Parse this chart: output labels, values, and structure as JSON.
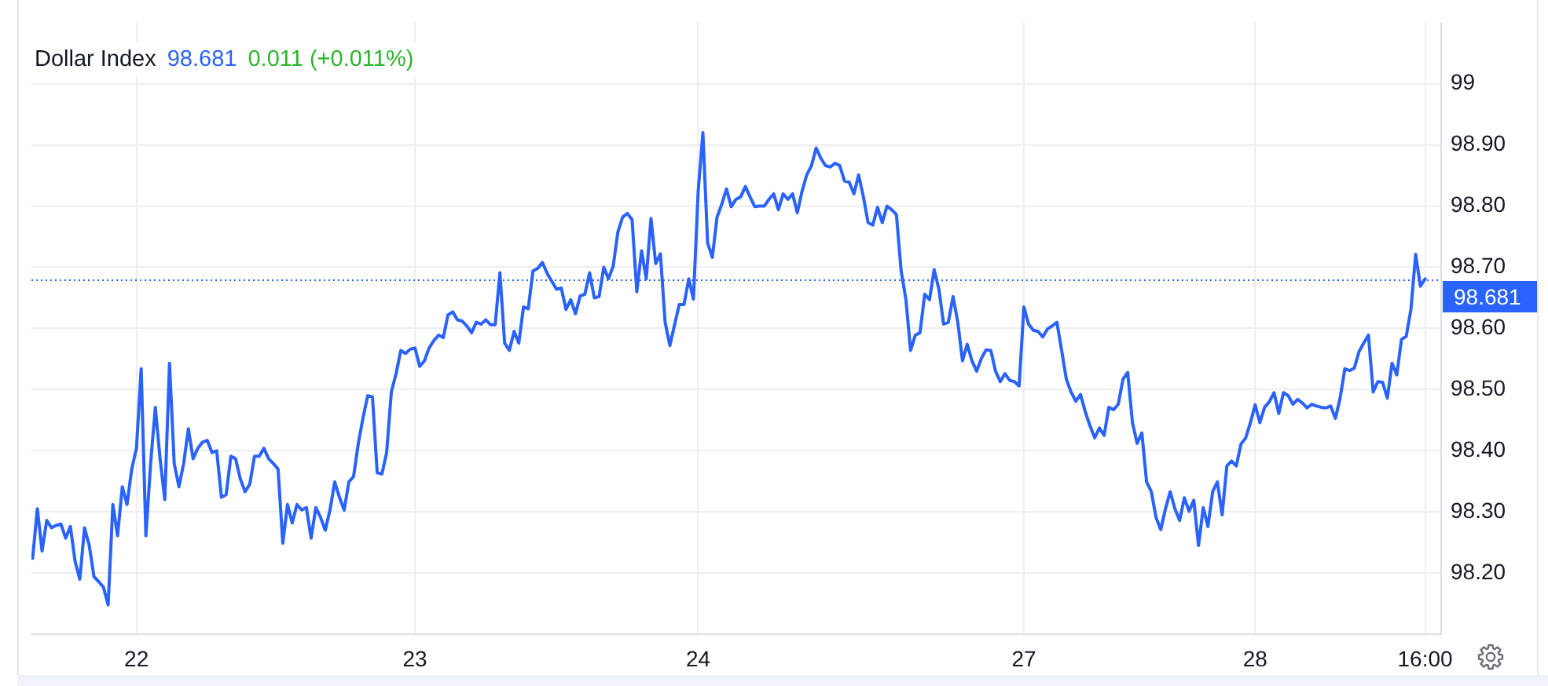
{
  "chart_data": {
    "type": "line",
    "title": "Dollar Index",
    "annotations": [
      "98.681",
      "0.011 (+0.011%)"
    ],
    "categories": [
      null,
      null,
      null,
      null,
      null,
      null,
      null,
      null,
      null,
      null,
      null,
      null,
      null,
      null,
      null,
      null,
      null,
      null,
      null,
      null,
      null,
      null,
      "22",
      null,
      null,
      null,
      null,
      null,
      null,
      null,
      null,
      null,
      null,
      null,
      null,
      null,
      null,
      null,
      null,
      null,
      null,
      null,
      null,
      null,
      null,
      null,
      null,
      null,
      null,
      null,
      null,
      null,
      null,
      null,
      null,
      null,
      null,
      null,
      null,
      null,
      null,
      null,
      null,
      null,
      null,
      null,
      null,
      null,
      null,
      null,
      null,
      null,
      null,
      null,
      null,
      null,
      null,
      null,
      null,
      null,
      null,
      "23",
      null,
      null,
      null,
      null,
      null,
      null,
      null,
      null,
      null,
      null,
      null,
      null,
      null,
      null,
      null,
      null,
      null,
      null,
      null,
      null,
      null,
      null,
      null,
      null,
      null,
      null,
      null,
      null,
      null,
      null,
      null,
      null,
      null,
      null,
      null,
      null,
      null,
      null,
      null,
      null,
      null,
      null,
      null,
      null,
      null,
      null,
      null,
      null,
      null,
      null,
      null,
      null,
      null,
      null,
      null,
      null,
      null,
      null,
      null,
      "24",
      null,
      null,
      null,
      null,
      null,
      null,
      null,
      null,
      null,
      null,
      null,
      null,
      null,
      null,
      null,
      null,
      null,
      null,
      null,
      null,
      null,
      null,
      null,
      null,
      null,
      null,
      null,
      null,
      null,
      null,
      null,
      null,
      null,
      null,
      null,
      null,
      null,
      null,
      null,
      null,
      null,
      null,
      null,
      null,
      null,
      null,
      null,
      null,
      null,
      null,
      null,
      null,
      null,
      null,
      null,
      null,
      null,
      null,
      null,
      null,
      null,
      null,
      null,
      null,
      null,
      null,
      null,
      null,
      "27",
      null,
      null,
      null,
      null,
      null,
      null,
      null,
      null,
      null,
      null,
      null,
      null,
      null,
      null,
      null,
      null,
      null,
      null,
      null,
      null,
      null,
      null,
      null,
      null,
      null,
      null,
      null,
      null,
      null,
      null,
      null,
      null,
      null,
      null,
      null,
      null,
      null,
      null,
      null,
      null,
      null,
      null,
      null,
      null,
      null,
      null,
      null,
      null,
      "28",
      null,
      null,
      null,
      null,
      null,
      null,
      null,
      null,
      null,
      null,
      null,
      null,
      null,
      null,
      null,
      null,
      null,
      null,
      null,
      null,
      null,
      null,
      null,
      null,
      null,
      null,
      null,
      null,
      null,
      null,
      null,
      null,
      null,
      null,
      null,
      "16:00"
    ],
    "series": [
      {
        "color": "#2962ff",
        "values": [
          98.224,
          98.305,
          98.236,
          98.286,
          98.274,
          98.278,
          98.28,
          98.257,
          98.276,
          98.219,
          98.19,
          98.274,
          98.245,
          98.194,
          98.186,
          98.177,
          98.148,
          98.312,
          98.261,
          98.341,
          98.312,
          98.37,
          98.404,
          98.534,
          98.261,
          98.379,
          98.471,
          98.387,
          98.32,
          98.543,
          98.379,
          98.341,
          98.379,
          98.436,
          98.387,
          98.404,
          98.414,
          98.417,
          98.397,
          98.4,
          98.324,
          98.328,
          98.391,
          98.387,
          98.354,
          98.333,
          98.345,
          98.391,
          98.391,
          98.404,
          98.387,
          98.379,
          98.37,
          98.249,
          98.312,
          98.282,
          98.312,
          98.303,
          98.307,
          98.257,
          98.307,
          98.291,
          98.27,
          98.303,
          98.349,
          98.324,
          98.303,
          98.349,
          98.358,
          98.412,
          98.454,
          98.49,
          98.488,
          98.364,
          98.362,
          98.397,
          98.496,
          98.526,
          98.564,
          98.559,
          98.566,
          98.568,
          98.538,
          98.547,
          98.568,
          98.58,
          98.589,
          98.585,
          98.622,
          98.627,
          98.614,
          98.612,
          98.604,
          98.593,
          98.61,
          98.607,
          98.614,
          98.606,
          98.606,
          98.691,
          98.576,
          98.564,
          98.595,
          98.576,
          98.635,
          98.632,
          98.694,
          98.698,
          98.708,
          98.69,
          98.677,
          98.664,
          98.666,
          98.631,
          98.647,
          98.624,
          98.653,
          98.656,
          98.691,
          98.65,
          98.652,
          98.7,
          98.681,
          98.702,
          98.758,
          98.782,
          98.788,
          98.778,
          98.66,
          98.727,
          98.681,
          98.78,
          98.706,
          98.722,
          98.61,
          98.572,
          98.606,
          98.639,
          98.639,
          98.681,
          98.648,
          98.824,
          98.92,
          98.74,
          98.716,
          98.782,
          98.803,
          98.828,
          98.799,
          98.811,
          98.815,
          98.832,
          98.815,
          98.799,
          98.8,
          98.8,
          98.811,
          98.82,
          98.794,
          98.82,
          98.811,
          98.82,
          98.789,
          98.824,
          98.851,
          98.866,
          98.895,
          98.878,
          98.866,
          98.864,
          98.87,
          98.866,
          98.841,
          98.839,
          98.82,
          98.851,
          98.815,
          98.773,
          98.769,
          98.798,
          98.773,
          98.8,
          98.794,
          98.786,
          98.694,
          98.648,
          98.564,
          98.589,
          98.593,
          98.656,
          98.647,
          98.696,
          98.664,
          98.607,
          98.61,
          98.652,
          98.61,
          98.547,
          98.574,
          98.547,
          98.53,
          98.551,
          98.565,
          98.564,
          98.53,
          98.513,
          98.526,
          98.515,
          98.513,
          98.506,
          98.635,
          98.607,
          98.597,
          98.595,
          98.586,
          98.599,
          98.604,
          98.61,
          98.564,
          98.517,
          98.496,
          98.481,
          98.492,
          98.464,
          98.441,
          98.421,
          98.437,
          98.425,
          98.471,
          98.467,
          98.476,
          98.517,
          98.528,
          98.446,
          98.412,
          98.429,
          98.349,
          98.333,
          98.291,
          98.271,
          98.305,
          98.333,
          98.305,
          98.286,
          98.323,
          98.301,
          98.319,
          98.245,
          98.307,
          98.276,
          98.333,
          98.349,
          98.295,
          98.375,
          98.383,
          98.375,
          98.411,
          98.421,
          98.446,
          98.475,
          98.446,
          98.471,
          98.48,
          98.495,
          98.461,
          98.495,
          98.49,
          98.476,
          98.484,
          98.478,
          98.47,
          98.476,
          98.473,
          98.471,
          98.47,
          98.473,
          98.453,
          98.486,
          98.534,
          98.531,
          98.535,
          98.562,
          98.576,
          98.589,
          98.496,
          98.513,
          98.512,
          98.486,
          98.543,
          98.524,
          98.582,
          98.587,
          98.631,
          98.721,
          98.669,
          98.681
        ]
      }
    ],
    "ylim": [
      98.1,
      99.1
    ],
    "yticks": [
      {
        "value": 98.2,
        "label": "98.20"
      },
      {
        "value": 98.3,
        "label": "98.30"
      },
      {
        "value": 98.4,
        "label": "98.40"
      },
      {
        "value": 98.5,
        "label": "98.50"
      },
      {
        "value": 98.6,
        "label": "98.60"
      },
      {
        "value": 98.7,
        "label": "98.70"
      },
      {
        "value": 98.8,
        "label": "98.80"
      },
      {
        "value": 98.9,
        "label": "98.90"
      },
      99
    ],
    "grid": true,
    "ref_lines": [
      {
        "axis": "y",
        "value": 98.681,
        "label": "98.681",
        "color": "#2962ff",
        "line_style": "dotted"
      }
    ]
  }
}
